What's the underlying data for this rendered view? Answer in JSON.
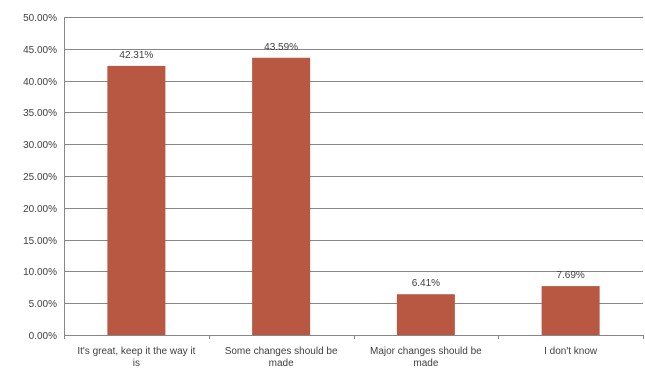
{
  "chart_data": {
    "type": "bar",
    "categories": [
      [
        "It's great, keep it the way it",
        "is"
      ],
      [
        "Some changes should be",
        "made"
      ],
      [
        "Major changes should be",
        "made"
      ],
      [
        "I don't know"
      ]
    ],
    "values": [
      42.31,
      43.59,
      6.41,
      7.69
    ],
    "data_labels": [
      "42.31%",
      "43.59%",
      "6.41%",
      "7.69%"
    ],
    "y_ticks": [
      "0.00%",
      "5.00%",
      "10.00%",
      "15.00%",
      "20.00%",
      "25.00%",
      "30.00%",
      "35.00%",
      "40.00%",
      "45.00%",
      "50.00%"
    ],
    "ylim": [
      0,
      50
    ],
    "grid": true,
    "bar_color": "#b85842",
    "title": "",
    "xlabel": "",
    "ylabel": ""
  }
}
